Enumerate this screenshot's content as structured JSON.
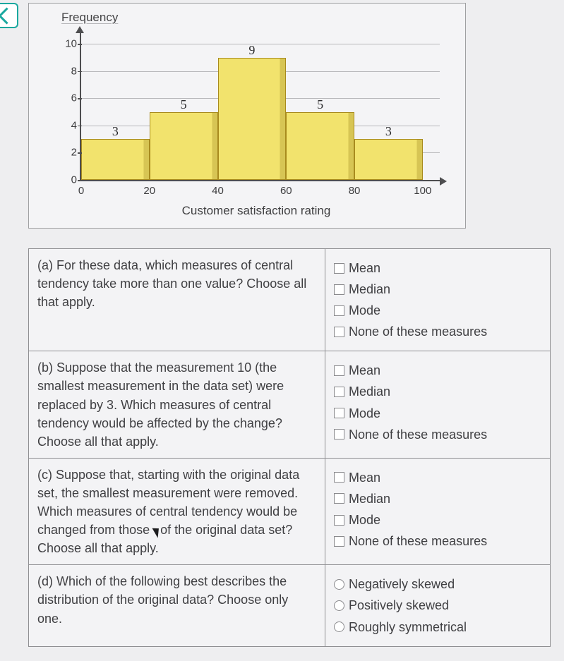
{
  "chart": {
    "type": "histogram",
    "y_axis_title": "Frequency",
    "x_axis_title": "Customer satisfaction rating",
    "ylim": [
      0,
      10.8
    ],
    "yticks": [
      0,
      2,
      4,
      6,
      8,
      10
    ],
    "xlim": [
      0,
      105
    ],
    "xticks": [
      0,
      20,
      40,
      60,
      80,
      100
    ],
    "gridlines_at": [
      2,
      4,
      6,
      8,
      10
    ],
    "bar_fill_color": "#f2e36d",
    "bar_edge_color": "#a88b1e",
    "background_color": "#f4f4f6",
    "grid_color": "#b8b8bb",
    "axis_color": "#4e4e50",
    "label_font": "Comic Sans MS",
    "bins": [
      {
        "range_start": 0,
        "range_end": 20,
        "frequency": 3,
        "label": "3"
      },
      {
        "range_start": 20,
        "range_end": 40,
        "frequency": 5,
        "label": "5"
      },
      {
        "range_start": 40,
        "range_end": 60,
        "frequency": 9,
        "label": "9"
      },
      {
        "range_start": 60,
        "range_end": 80,
        "frequency": 5,
        "label": "5"
      },
      {
        "range_start": 80,
        "range_end": 100,
        "frequency": 3,
        "label": "3"
      }
    ]
  },
  "options_ct": {
    "mean": "Mean",
    "median": "Median",
    "mode": "Mode",
    "none": "None of these measures"
  },
  "options_skew": {
    "neg": "Negatively skewed",
    "pos": "Positively skewed",
    "sym": "Roughly symmetrical"
  },
  "questions": {
    "a": "(a) For these data, which measures of central tendency take more than one value? Choose all that apply.",
    "b": "(b) Suppose that the measurement 10 (the smallest measurement in the data set) were replaced by 3. Which measures of central tendency would be affected by the change? Choose all that apply.",
    "c_pre": "(c) Suppose that, starting with the original data set, the smallest measurement were removed. Which measures of central tendency would be changed from those ",
    "c_post": "of the original data set? Choose all that apply.",
    "d": "(d) Which of the following best describes the distribution of the original data? Choose only one."
  }
}
